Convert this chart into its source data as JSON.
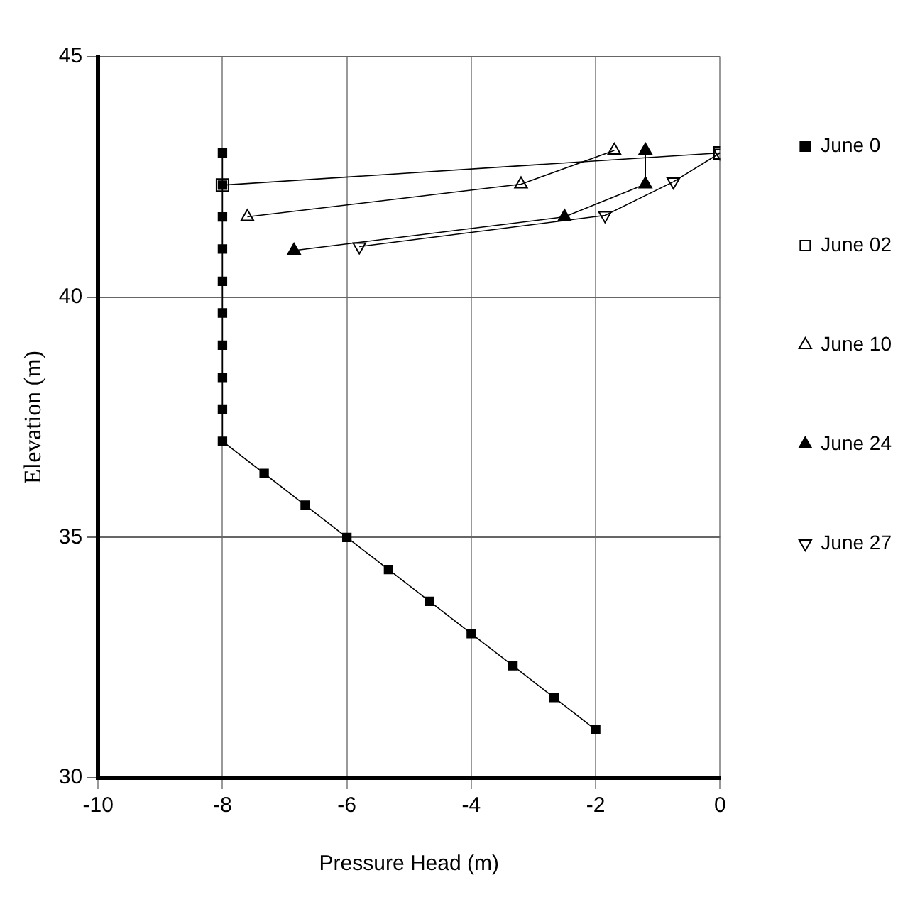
{
  "chart_data": {
    "type": "line",
    "xlabel": "Pressure Head (m)",
    "ylabel": "Elevation (m)",
    "xlim": [
      -10,
      0
    ],
    "xticks": [
      -10,
      -8,
      -6,
      -4,
      -2,
      0
    ],
    "ylim": [
      30,
      45
    ],
    "yticks": [
      30,
      35,
      40,
      45
    ],
    "grid": true,
    "legend": "right",
    "line_style": "solid",
    "series": [
      {
        "name": "June 0",
        "color": "#000000",
        "marker": "square",
        "x": [
          -8,
          -8,
          -8,
          -8,
          -8,
          -8,
          -8,
          -8,
          -8,
          -8,
          -7.33,
          -6.67,
          -6,
          -5.33,
          -4.67,
          -4,
          -3.33,
          -2.67,
          -2
        ],
        "values": [
          43,
          42.33,
          41.67,
          41,
          40.33,
          39.67,
          39,
          38.33,
          37.67,
          37,
          36.33,
          35.67,
          35,
          34.33,
          33.67,
          33,
          32.33,
          31.67,
          31
        ]
      },
      {
        "name": "June 02",
        "color": "#000000",
        "marker": "square_open",
        "x": [
          -8,
          0
        ],
        "values": [
          42.33,
          43
        ]
      },
      {
        "name": "June 10",
        "color": "#000000",
        "marker": "triangle_open",
        "x": [
          -7.6,
          -3.2,
          -1.7
        ],
        "values": [
          41.67,
          42.35,
          43.05
        ]
      },
      {
        "name": "June 24",
        "color": "#000000",
        "marker": "triangle",
        "x": [
          -6.85,
          -2.5,
          -1.2,
          -1.2
        ],
        "values": [
          40.97,
          41.67,
          42.35,
          43.05
        ]
      },
      {
        "name": "June 27",
        "color": "#000000",
        "marker": "triangle_down_open",
        "x": [
          -5.8,
          -1.85,
          -0.75,
          0
        ],
        "values": [
          41.05,
          41.7,
          42.4,
          43
        ]
      }
    ]
  }
}
